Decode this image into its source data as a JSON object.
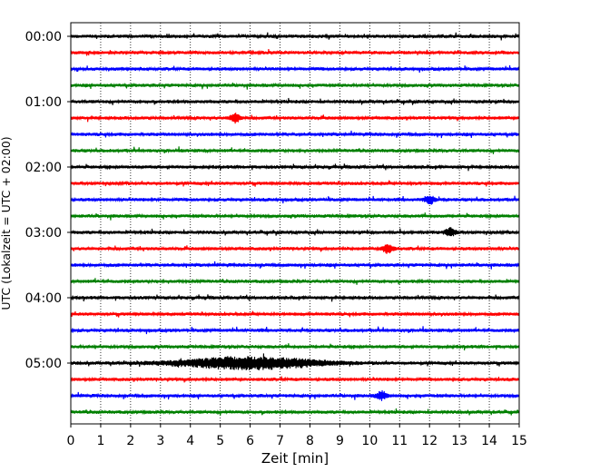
{
  "chart_data": {
    "type": "line",
    "title": "",
    "xlabel": "Zeit  [min]",
    "ylabel": "UTC (Lokalzeit = UTC + 02:00)",
    "xlim": [
      0,
      15
    ],
    "x_ticks": [
      "0",
      "1",
      "2",
      "3",
      "4",
      "5",
      "6",
      "7",
      "8",
      "9",
      "10",
      "11",
      "12",
      "13",
      "14",
      "15"
    ],
    "y_tick_labels": [
      "00:00",
      "01:00",
      "02:00",
      "03:00",
      "04:00",
      "05:00"
    ],
    "grid": "vertical dotted lines at each minute",
    "trace_interval_min": 15,
    "trace_count": 24,
    "trace_color_cycle": [
      "#000000",
      "#ff0000",
      "#0000ff",
      "#008000"
    ],
    "events": [
      {
        "trace_start": "05:00",
        "time_min": 6.0,
        "description": "large burst"
      },
      {
        "trace_start": "03:15",
        "time_min": 10.6
      },
      {
        "trace_start": "02:30",
        "time_min": 12.0
      },
      {
        "trace_start": "03:00",
        "time_min": 12.7
      },
      {
        "trace_start": "01:15",
        "time_min": 5.5
      },
      {
        "trace_start": "05:30",
        "time_min": 10.4
      }
    ]
  }
}
